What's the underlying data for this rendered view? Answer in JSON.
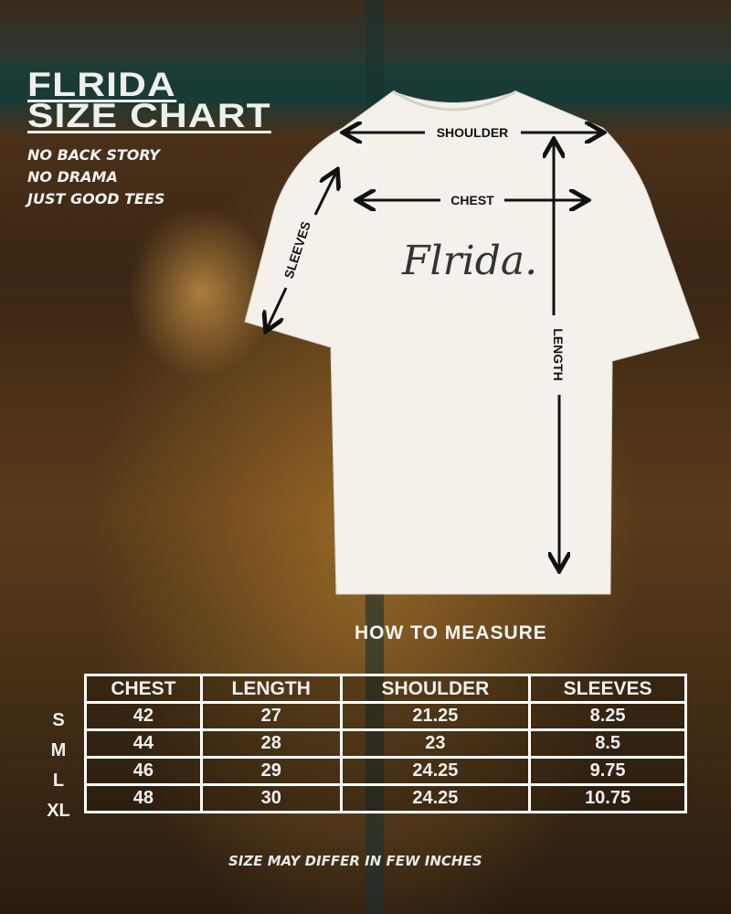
{
  "title": {
    "line1": "FLRIDA",
    "line2": "SIZE CHART"
  },
  "taglines": [
    "NO BACK STORY",
    "NO DRAMA",
    "JUST GOOD TEES"
  ],
  "shirt": {
    "logo": "Flrida.",
    "color": "#f3f1ea",
    "labels": {
      "shoulder": "SHOULDER",
      "chest": "CHEST",
      "sleeves": "SLEEVES",
      "length": "LENGTH"
    }
  },
  "how_to_measure": "HOW TO MEASURE",
  "table": {
    "headers": [
      "CHEST",
      "LENGTH",
      "SHOULDER",
      "SLEEVES"
    ],
    "rows": [
      {
        "size": "S",
        "values": [
          "42",
          "27",
          "21.25",
          "8.25"
        ]
      },
      {
        "size": "M",
        "values": [
          "44",
          "28",
          "23",
          "8.5"
        ]
      },
      {
        "size": "L",
        "values": [
          "46",
          "29",
          "24.25",
          "9.75"
        ]
      },
      {
        "size": "XL",
        "values": [
          "48",
          "30",
          "24.25",
          "10.75"
        ]
      }
    ]
  },
  "footer": "SIZE MAY DIFFER IN FEW INCHES"
}
